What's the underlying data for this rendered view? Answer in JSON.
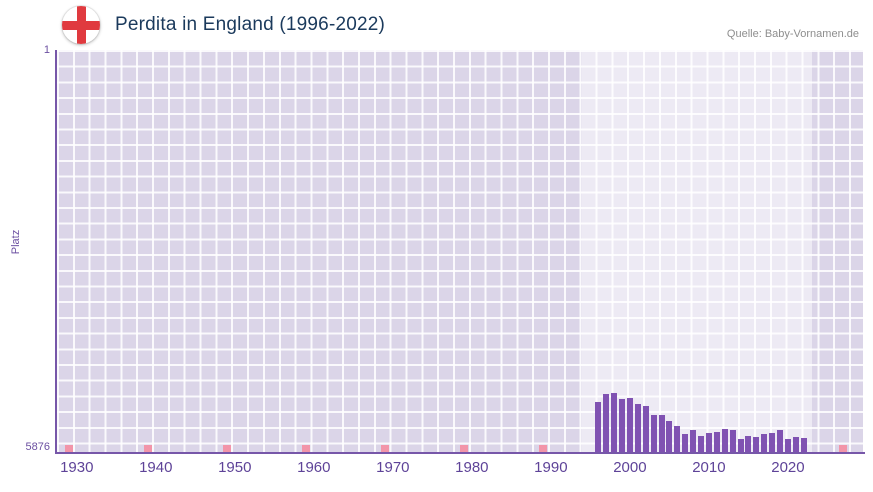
{
  "header": {
    "title": "Perdita in England (1996-2022)",
    "source": "Quelle: Baby-Vornamen.de"
  },
  "colors": {
    "bar": "#8052b2",
    "axis": "#7757a9",
    "plot_background": "#dbd5e8",
    "no_data_marker": "#f295a9",
    "title_text": "#1b3a5c",
    "tick_text": "#5e4398"
  },
  "chart_data": {
    "type": "bar",
    "title": "Perdita in England (1996-2022)",
    "xlabel": "",
    "ylabel": "Platz",
    "y_axis": {
      "top_label": "1",
      "bottom_label": "5876",
      "min": 1,
      "max": 5876,
      "inverted": true
    },
    "x_axis": {
      "range": [
        1927.5,
        2029.5
      ],
      "ticks": [
        1930,
        1940,
        1950,
        1960,
        1970,
        1980,
        1990,
        2000,
        2010,
        2020
      ]
    },
    "highlight_band": {
      "from": 1994,
      "to": 2023
    },
    "no_data_markers": [
      1929,
      1939,
      1949,
      1959,
      1969,
      1979,
      1989,
      2027
    ],
    "series": [
      {
        "name": "Platz",
        "data": [
          {
            "year": 1996,
            "rank": 5150
          },
          {
            "year": 1997,
            "rank": 5030
          },
          {
            "year": 1998,
            "rank": 5020
          },
          {
            "year": 1999,
            "rank": 5100
          },
          {
            "year": 2000,
            "rank": 5090
          },
          {
            "year": 2001,
            "rank": 5180
          },
          {
            "year": 2002,
            "rank": 5210
          },
          {
            "year": 2003,
            "rank": 5340
          },
          {
            "year": 2004,
            "rank": 5330
          },
          {
            "year": 2005,
            "rank": 5420
          },
          {
            "year": 2006,
            "rank": 5490
          },
          {
            "year": 2007,
            "rank": 5610
          },
          {
            "year": 2008,
            "rank": 5550
          },
          {
            "year": 2009,
            "rank": 5640
          },
          {
            "year": 2010,
            "rank": 5600
          },
          {
            "year": 2011,
            "rank": 5580
          },
          {
            "year": 2012,
            "rank": 5540
          },
          {
            "year": 2013,
            "rank": 5560
          },
          {
            "year": 2014,
            "rank": 5680
          },
          {
            "year": 2015,
            "rank": 5640
          },
          {
            "year": 2016,
            "rank": 5650
          },
          {
            "year": 2017,
            "rank": 5620
          },
          {
            "year": 2018,
            "rank": 5600
          },
          {
            "year": 2019,
            "rank": 5560
          },
          {
            "year": 2020,
            "rank": 5690
          },
          {
            "year": 2021,
            "rank": 5650
          },
          {
            "year": 2022,
            "rank": 5670
          }
        ]
      }
    ]
  }
}
